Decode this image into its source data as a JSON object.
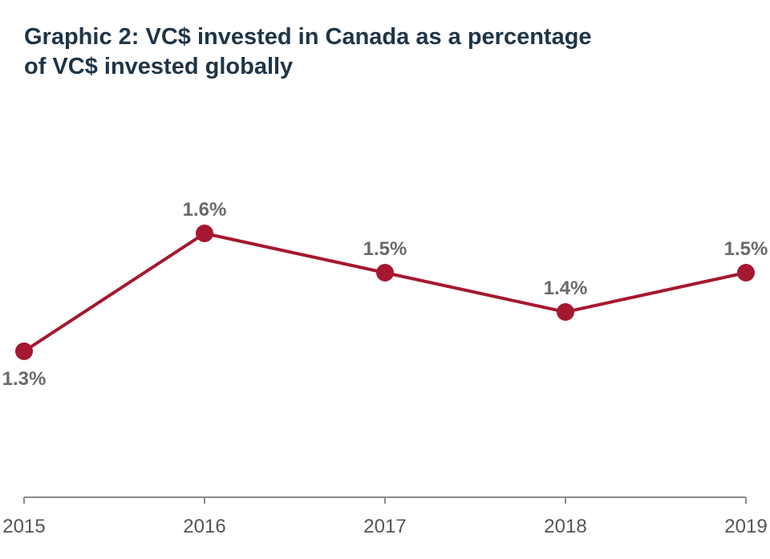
{
  "title_line1": "Graphic 2: VC$ invested in Canada as a percentage",
  "title_line2": "of VC$ invested globally",
  "colors": {
    "line": "#a51830",
    "point": "#a51830",
    "label": "#6a6a6a",
    "axis": "#8a8a8a",
    "tick_label": "#555555",
    "title": "#1f3447"
  },
  "chart_data": {
    "type": "line",
    "title": "Graphic 2: VC$ invested in Canada as a percentage of VC$ invested globally",
    "xlabel": "",
    "ylabel": "",
    "categories": [
      "2015",
      "2016",
      "2017",
      "2018",
      "2019"
    ],
    "series": [
      {
        "values": [
          1.3,
          1.6,
          1.5,
          1.4,
          1.5
        ],
        "labels": [
          "1.3%",
          "1.6%",
          "1.5%",
          "1.4%",
          "1.5%"
        ]
      }
    ],
    "grid": false,
    "legend": "none"
  }
}
